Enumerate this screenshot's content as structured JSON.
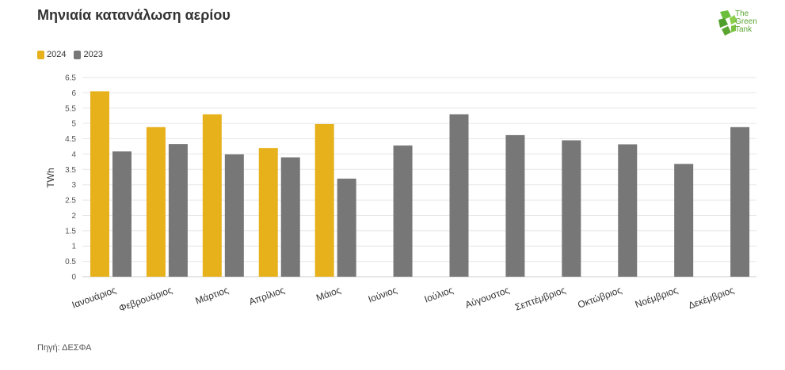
{
  "chart_data": {
    "type": "bar",
    "title": "Μηνιαία κατανάλωση αερίου",
    "ylabel": "TWh",
    "xlabel": "",
    "ylim": [
      0,
      6.5
    ],
    "yticks": [
      "0",
      "0.5",
      "1",
      "1.5",
      "2",
      "2.5",
      "3",
      "3.5",
      "4",
      "4.5",
      "5",
      "5.5",
      "6",
      "6.5"
    ],
    "categories": [
      "Ιανουάριος",
      "Φεβρουάριος",
      "Μάρτιος",
      "Απρίλιος",
      "Μάιος",
      "Ιούνιος",
      "Ιούλιος",
      "Αύγουστος",
      "Σεπτέμβριος",
      "Οκτώβριος",
      "Νοέμβριος",
      "Δεκέμβριος"
    ],
    "series": [
      {
        "name": "2024",
        "color": "#e6b11b",
        "values": [
          6.05,
          4.88,
          5.3,
          4.2,
          4.98,
          null,
          null,
          null,
          null,
          null,
          null,
          null
        ]
      },
      {
        "name": "2023",
        "color": "#777777",
        "values": [
          4.09,
          4.33,
          3.99,
          3.89,
          3.2,
          4.28,
          5.3,
          4.62,
          4.45,
          4.32,
          3.68,
          4.88
        ]
      }
    ],
    "grid": true,
    "legend_position": "top-left",
    "source": "Πηγή: ΔΕΣΦΑ"
  },
  "logo": {
    "line1": "The",
    "line2": "Green",
    "line3": "Tank"
  }
}
